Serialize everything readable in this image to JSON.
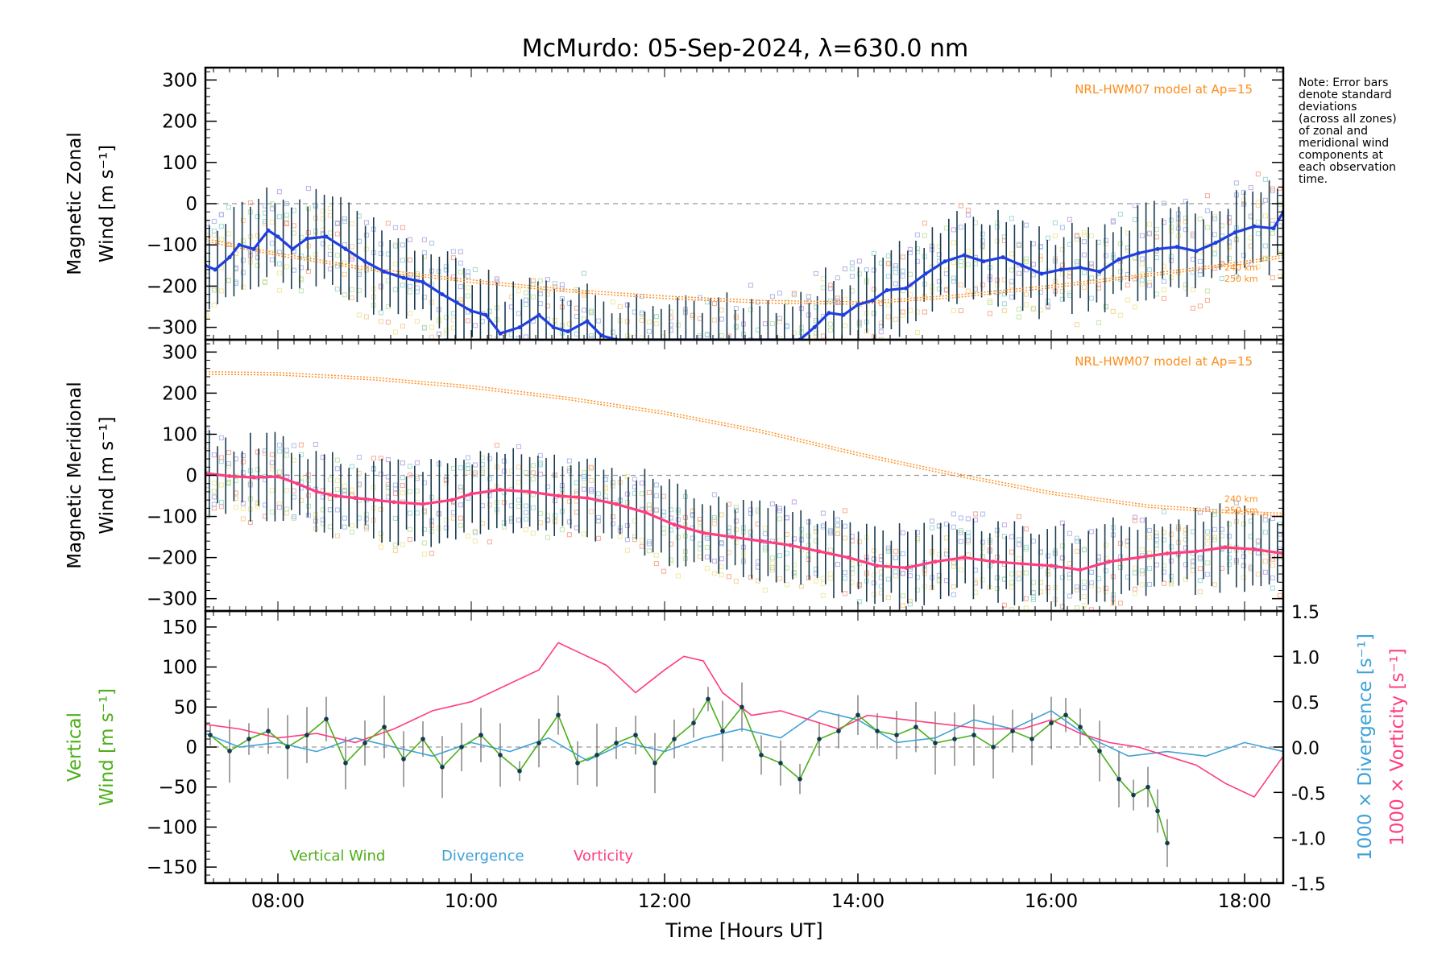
{
  "title": "McMurdo: 05-Sep-2024, λ=630.0 nm",
  "note_lines": [
    "Note: Error bars",
    "denote standard",
    "deviations",
    "(across all zones)",
    "of zonal and",
    "meridional wind",
    "components at",
    "each observation",
    "time."
  ],
  "colors": {
    "zonal": "#1f3fe0",
    "meridional": "#ff3d7f",
    "model": "#ff8c1a",
    "vertical": "#4caf1a",
    "divergence": "#3fa2d8",
    "vorticity": "#ff3d7f",
    "errorbar": "#1b3b4f",
    "zero_line": "#9a9a9a"
  },
  "chart_data": [
    {
      "type": "line",
      "panel": "zonal",
      "ylabel_lines": [
        "Magnetic Zonal",
        "Wind [m s⁻¹]"
      ],
      "xlim": [
        7.25,
        18.4
      ],
      "ylim": [
        -330,
        330
      ],
      "yticks": [
        -300,
        -200,
        -100,
        0,
        100,
        200,
        300
      ],
      "model_label": "NRL-HWM07 model at Ap=15",
      "model_alt_labels": [
        "240 km",
        "250 km"
      ],
      "model_curve": {
        "name": "NRL-HWM07 model at Ap=15",
        "x": [
          7.25,
          8,
          9,
          10,
          11,
          12,
          13,
          14,
          15,
          16,
          17,
          18,
          18.4
        ],
        "y": [
          -85,
          -120,
          -158,
          -185,
          -208,
          -224,
          -235,
          -238,
          -222,
          -198,
          -170,
          -140,
          -125
        ]
      },
      "series": [
        {
          "name": "Magnetic Zonal Wind",
          "x": [
            7.25,
            7.35,
            7.5,
            7.6,
            7.75,
            7.9,
            8.0,
            8.15,
            8.3,
            8.5,
            8.7,
            8.9,
            9.1,
            9.3,
            9.5,
            9.7,
            9.85,
            10.0,
            10.15,
            10.3,
            10.5,
            10.7,
            10.85,
            11.0,
            11.2,
            11.35,
            11.5,
            13.4,
            13.55,
            13.7,
            13.85,
            14.0,
            14.15,
            14.3,
            14.5,
            14.7,
            14.9,
            15.1,
            15.3,
            15.5,
            15.7,
            15.9,
            16.1,
            16.3,
            16.5,
            16.7,
            16.9,
            17.1,
            17.3,
            17.5,
            17.7,
            17.9,
            18.1,
            18.3,
            18.4
          ],
          "y": [
            -150,
            -160,
            -130,
            -100,
            -110,
            -65,
            -80,
            -110,
            -85,
            -80,
            -110,
            -140,
            -165,
            -180,
            -190,
            -220,
            -240,
            -260,
            -270,
            -315,
            -300,
            -270,
            -300,
            -310,
            -285,
            -320,
            -330,
            -330,
            -300,
            -265,
            -270,
            -245,
            -235,
            -210,
            -205,
            -170,
            -140,
            -125,
            -140,
            -130,
            -150,
            -170,
            -160,
            -155,
            -165,
            -135,
            -120,
            -110,
            -105,
            -115,
            -95,
            -70,
            -55,
            -60,
            -20
          ]
        }
      ],
      "scatter_zone_range": [
        -300,
        80
      ],
      "errorbar_halfwidth_range": [
        60,
        120
      ]
    },
    {
      "type": "line",
      "panel": "meridional",
      "ylabel_lines": [
        "Magnetic Meridional",
        "Wind [m s⁻¹]"
      ],
      "xlim": [
        7.25,
        18.4
      ],
      "ylim": [
        -330,
        330
      ],
      "yticks": [
        -300,
        -200,
        -100,
        0,
        100,
        200,
        300
      ],
      "model_label": "NRL-HWM07 model at Ap=15",
      "model_alt_labels": [
        "240 km",
        "250 km"
      ],
      "model_curve": {
        "name": "NRL-HWM07 model at Ap=15",
        "x": [
          7.25,
          8,
          9,
          10,
          11,
          12,
          13,
          14,
          15,
          16,
          17,
          18,
          18.4
        ],
        "y": [
          252,
          250,
          238,
          218,
          190,
          155,
          110,
          55,
          5,
          -40,
          -72,
          -88,
          -92
        ]
      },
      "series": [
        {
          "name": "Magnetic Meridional Wind",
          "x": [
            7.25,
            7.5,
            7.75,
            8.0,
            8.2,
            8.4,
            8.6,
            8.8,
            9.0,
            9.2,
            9.5,
            9.8,
            10.0,
            10.3,
            10.6,
            10.9,
            11.2,
            11.5,
            11.8,
            12.1,
            12.4,
            12.7,
            13.0,
            13.3,
            13.6,
            13.9,
            14.2,
            14.5,
            14.8,
            15.1,
            15.4,
            15.7,
            16.0,
            16.3,
            16.6,
            16.9,
            17.2,
            17.5,
            17.8,
            18.1,
            18.4
          ],
          "y": [
            5,
            -2,
            -5,
            -3,
            -20,
            -40,
            -50,
            -55,
            -60,
            -65,
            -70,
            -60,
            -45,
            -35,
            -40,
            -50,
            -55,
            -70,
            -90,
            -120,
            -140,
            -150,
            -160,
            -170,
            -185,
            -200,
            -220,
            -225,
            -210,
            -200,
            -210,
            -215,
            -220,
            -230,
            -210,
            -200,
            -190,
            -185,
            -175,
            -180,
            -190
          ]
        }
      ],
      "scatter_zone_range": [
        -300,
        40
      ],
      "errorbar_halfwidth_range": [
        60,
        110
      ]
    },
    {
      "type": "line",
      "panel": "vertical",
      "ylabel_lines": [
        "Vertical",
        "Wind [m s⁻¹]"
      ],
      "y2_label_div": "1000 × Divergence [s⁻¹]",
      "y2_label_vort": "1000 × Vorticity [s⁻¹]",
      "xlabel": "Time [Hours UT]",
      "xticks": [
        "08:00",
        "10:00",
        "12:00",
        "14:00",
        "16:00",
        "18:00"
      ],
      "xtick_values": [
        8,
        10,
        12,
        14,
        16,
        18
      ],
      "xlim": [
        7.25,
        18.4
      ],
      "ylim": [
        -170,
        170
      ],
      "yticks": [
        -150,
        -100,
        -50,
        0,
        50,
        100,
        150
      ],
      "y2lim": [
        -1.5,
        1.5
      ],
      "y2ticks": [
        "-1.5",
        "-1.0",
        "-0.5",
        "0.0",
        "0.5",
        "1.0",
        "1.5"
      ],
      "legend": [
        "Vertical Wind",
        "Divergence",
        "Vorticity"
      ],
      "series": [
        {
          "name": "Vertical Wind",
          "axis": "left",
          "x": [
            7.3,
            7.5,
            7.7,
            7.9,
            8.1,
            8.3,
            8.5,
            8.7,
            8.9,
            9.1,
            9.3,
            9.5,
            9.7,
            9.9,
            10.1,
            10.3,
            10.5,
            10.7,
            10.9,
            11.1,
            11.3,
            11.5,
            11.7,
            11.9,
            12.1,
            12.3,
            12.45,
            12.6,
            12.8,
            13.0,
            13.2,
            13.4,
            13.6,
            13.8,
            14.0,
            14.2,
            14.4,
            14.6,
            14.8,
            15.0,
            15.2,
            15.4,
            15.6,
            15.8,
            16.0,
            16.15,
            16.3,
            16.5,
            16.7,
            16.85,
            17.0,
            17.1,
            17.2
          ],
          "y": [
            15,
            -5,
            10,
            20,
            0,
            15,
            35,
            -20,
            5,
            25,
            -15,
            10,
            -25,
            0,
            15,
            -10,
            -30,
            5,
            40,
            -20,
            -10,
            5,
            15,
            -20,
            10,
            30,
            60,
            20,
            50,
            -10,
            -20,
            -40,
            10,
            20,
            40,
            20,
            15,
            25,
            5,
            10,
            15,
            0,
            20,
            10,
            30,
            40,
            25,
            -5,
            -40,
            -60,
            -50,
            -80,
            -120
          ]
        },
        {
          "name": "Divergence",
          "axis": "right",
          "x": [
            7.25,
            7.6,
            8.0,
            8.4,
            8.8,
            9.2,
            9.6,
            10.0,
            10.4,
            10.8,
            11.2,
            11.6,
            12.0,
            12.4,
            12.8,
            13.2,
            13.6,
            14.0,
            14.4,
            14.8,
            15.2,
            15.6,
            16.0,
            16.4,
            16.8,
            17.2,
            17.6,
            18.0,
            18.4
          ],
          "y": [
            0.15,
            0.0,
            0.05,
            -0.05,
            0.1,
            0.0,
            -0.1,
            0.05,
            -0.05,
            0.1,
            -0.15,
            0.05,
            -0.05,
            0.1,
            0.2,
            0.1,
            0.4,
            0.3,
            0.05,
            0.1,
            0.3,
            0.2,
            0.4,
            0.1,
            -0.1,
            -0.05,
            -0.1,
            0.05,
            -0.05
          ]
        },
        {
          "name": "Vorticity",
          "axis": "right",
          "x": [
            7.25,
            7.6,
            8.0,
            8.4,
            8.8,
            9.2,
            9.6,
            10.0,
            10.4,
            10.7,
            10.9,
            11.1,
            11.4,
            11.7,
            12.0,
            12.2,
            12.4,
            12.6,
            12.9,
            13.2,
            13.5,
            13.8,
            14.1,
            14.5,
            14.9,
            15.3,
            15.7,
            16.0,
            16.3,
            16.6,
            16.9,
            17.2,
            17.5,
            17.8,
            18.1,
            18.4
          ],
          "y": [
            0.25,
            0.2,
            0.1,
            0.15,
            0.05,
            0.2,
            0.4,
            0.5,
            0.7,
            0.85,
            1.15,
            1.05,
            0.9,
            0.6,
            0.85,
            1.0,
            0.95,
            0.6,
            0.35,
            0.4,
            0.3,
            0.2,
            0.35,
            0.3,
            0.25,
            0.2,
            0.2,
            0.3,
            0.15,
            0.05,
            0.0,
            -0.1,
            -0.2,
            -0.4,
            -0.55,
            -0.1
          ]
        }
      ]
    }
  ]
}
